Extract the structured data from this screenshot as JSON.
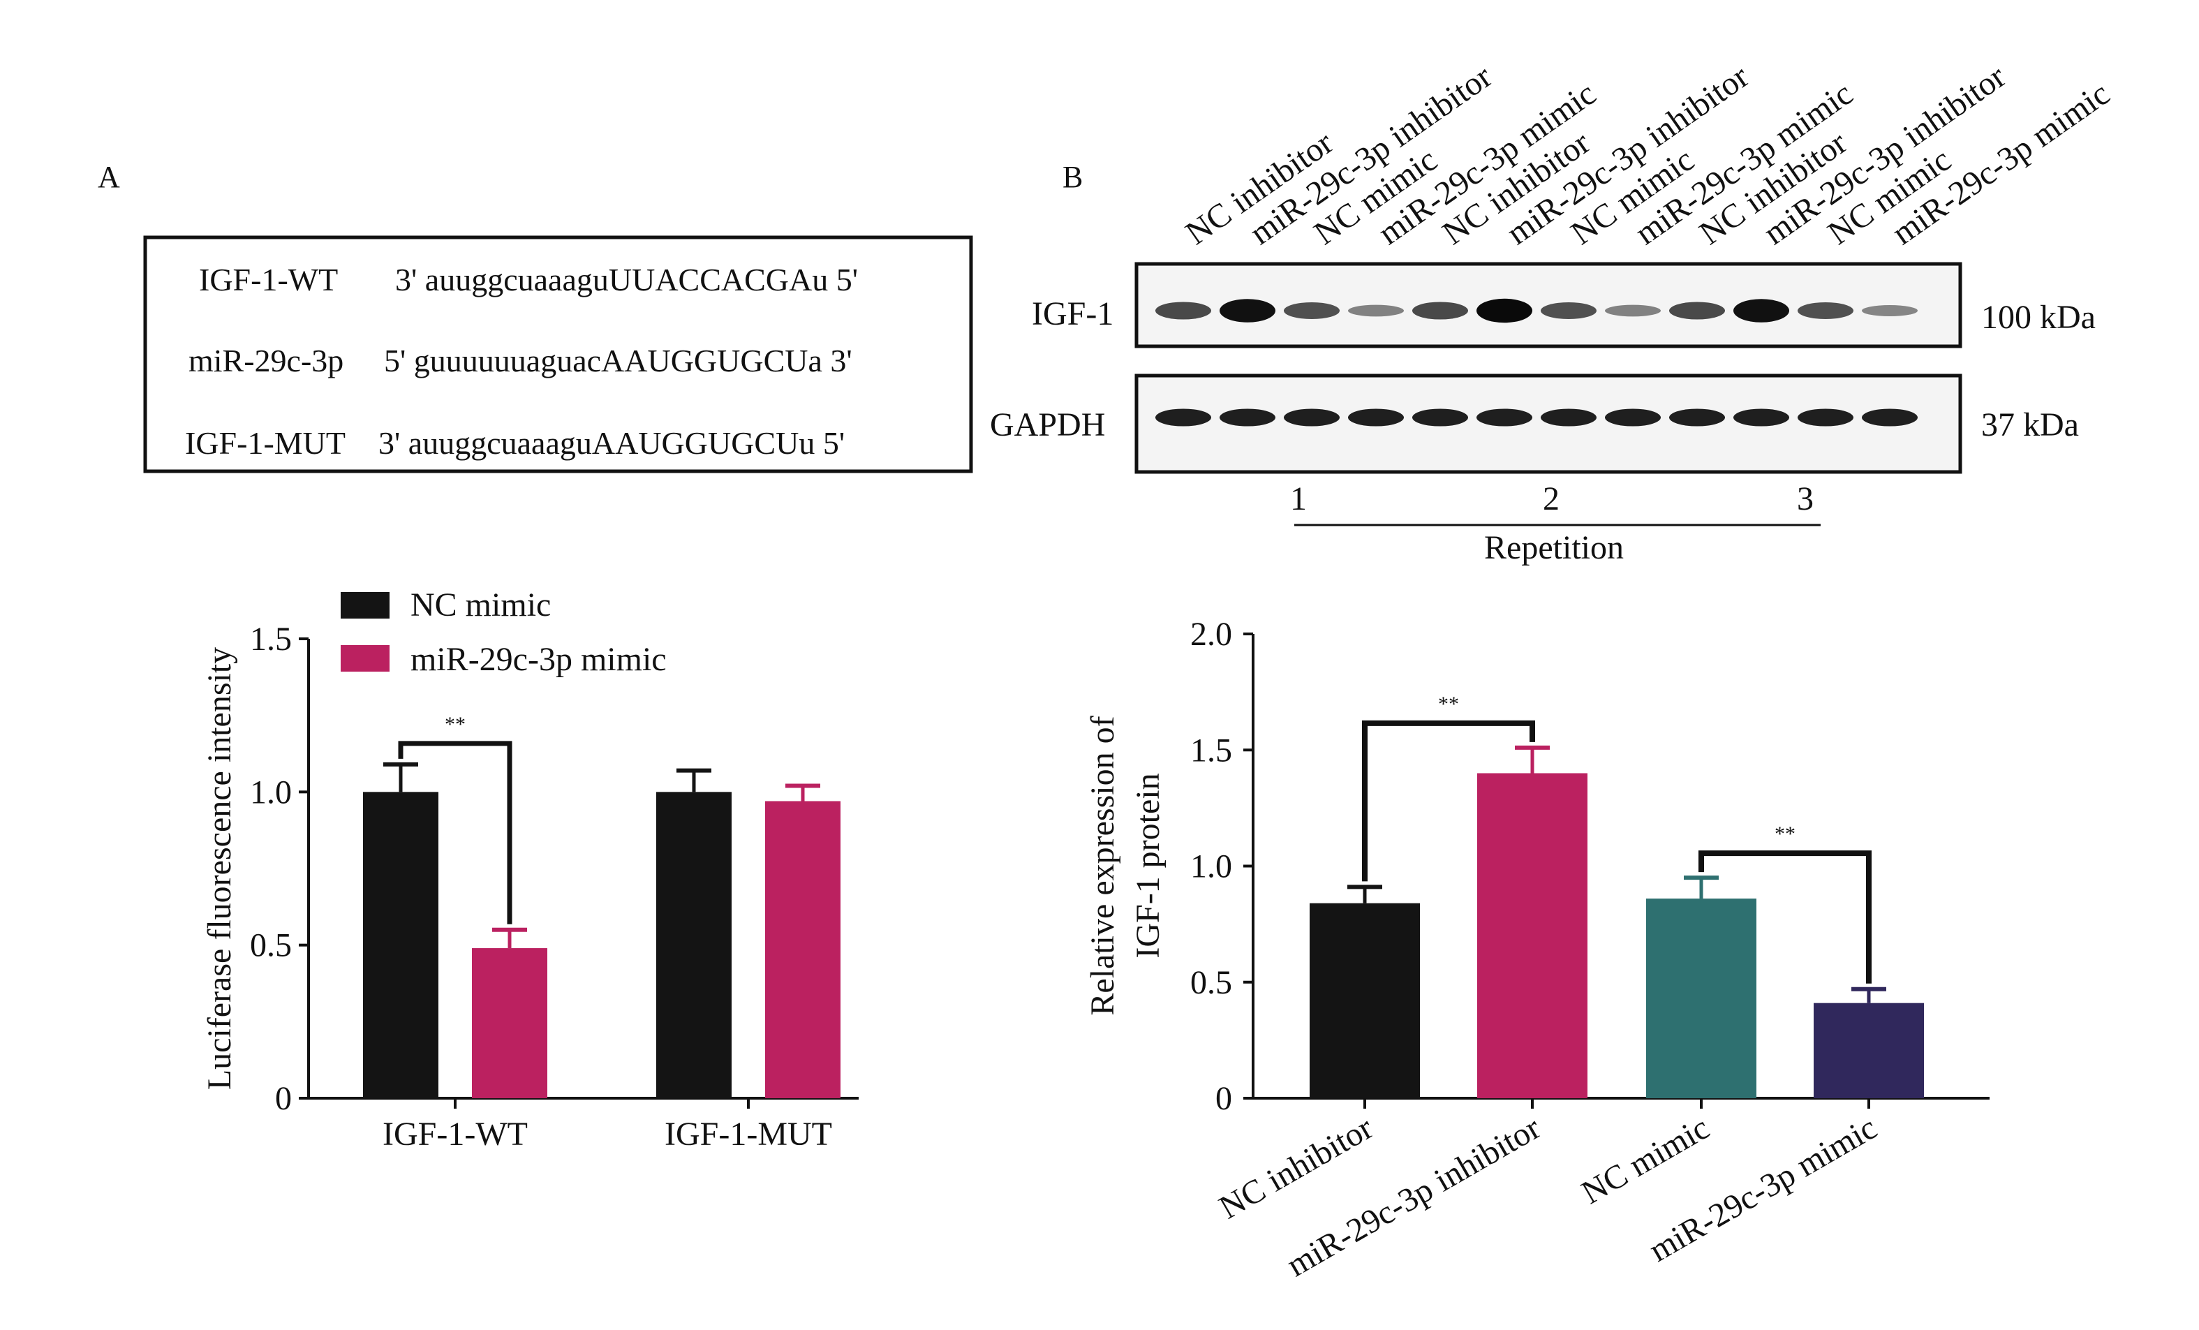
{
  "panel_a": {
    "letter": "A",
    "sequences": [
      {
        "name": "IGF-1-WT",
        "seq": "3' auuggcuaaaguUUACCACGAu 5'"
      },
      {
        "name": "miR-29c-3p",
        "seq": "5' guuuuuuaguacAAUGGUGCUa 3'"
      },
      {
        "name": "IGF-1-MUT",
        "seq": "3' auuggcuaaaguAAUGGUGCUu 5'"
      }
    ]
  },
  "panel_b": {
    "letter": "B",
    "lanes": [
      "NC inhibitor",
      "miR-29c-3p inhibitor",
      "NC mimic",
      "miR-29c-3p mimic",
      "NC inhibitor",
      "miR-29c-3p inhibitor",
      "NC mimic",
      "miR-29c-3p mimic",
      "NC inhibitor",
      "miR-29c-3p inhibitor",
      "NC mimic",
      "miR-29c-3p mimic"
    ],
    "blots": [
      {
        "name": "IGF-1",
        "size": "100 kDa",
        "intensities": [
          0.55,
          0.95,
          0.5,
          0.15,
          0.55,
          1.0,
          0.5,
          0.15,
          0.55,
          0.95,
          0.5,
          0.12
        ]
      },
      {
        "name": "GAPDH",
        "size": "37 kDa",
        "intensities": [
          0.85,
          0.85,
          0.85,
          0.85,
          0.85,
          0.85,
          0.85,
          0.85,
          0.85,
          0.85,
          0.85,
          0.85
        ]
      }
    ],
    "repetitions": [
      "1",
      "2",
      "3"
    ],
    "repetition_label": "Repetition"
  },
  "chart_data": [
    {
      "type": "bar",
      "title": "",
      "xlabel": "",
      "ylabel": "Luciferase fluorescence intensity",
      "ylim": [
        0,
        1.5
      ],
      "yticks": [
        0,
        0.5,
        1.0,
        1.5
      ],
      "ytick_labels": [
        "0",
        "0.5",
        "1.0",
        "1.5"
      ],
      "categories": [
        "IGF-1-WT",
        "IGF-1-MUT"
      ],
      "legend_position": "top-left",
      "series": [
        {
          "name": "NC mimic",
          "color": "#141414",
          "values": [
            1.0,
            1.0
          ],
          "errors": [
            0.09,
            0.07
          ]
        },
        {
          "name": "miR-29c-3p mimic",
          "color": "#bb2160",
          "values": [
            0.49,
            0.97
          ],
          "errors": [
            0.06,
            0.05
          ]
        }
      ],
      "significance": [
        {
          "label": "**",
          "between": "IGF-1-WT: NC mimic vs miR-29c-3p mimic"
        }
      ]
    },
    {
      "type": "bar",
      "title": "",
      "xlabel": "",
      "ylabel": [
        "Relative expression of",
        "IGF-1 protein"
      ],
      "ylim": [
        0,
        2.0
      ],
      "yticks": [
        0,
        0.5,
        1.0,
        1.5,
        2.0
      ],
      "ytick_labels": [
        "0",
        "0.5",
        "1.0",
        "1.5",
        "2.0"
      ],
      "categories": [
        "NC inhibitor",
        "miR-29c-3p inhibitor",
        "NC mimic",
        "miR-29c-3p mimic"
      ],
      "values": [
        0.84,
        1.4,
        0.86,
        0.41
      ],
      "errors": [
        0.07,
        0.11,
        0.09,
        0.06
      ],
      "colors": [
        "#141414",
        "#bb2160",
        "#2e7070",
        "#30285c"
      ],
      "significance": [
        {
          "label": "**",
          "between": "NC inhibitor vs miR-29c-3p inhibitor"
        },
        {
          "label": "**",
          "between": "NC mimic vs miR-29c-3p mimic"
        }
      ]
    }
  ]
}
